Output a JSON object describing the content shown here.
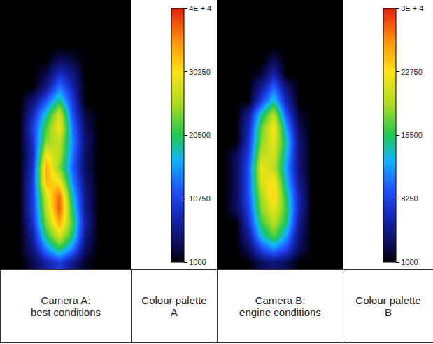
{
  "chart_data": [
    {
      "type": "heatmap",
      "caption": "Camera A: best conditions",
      "colorbar_caption": "Colour palette A",
      "tick_labels": false,
      "zlim": [
        1000,
        40000
      ],
      "zticks": [
        1000,
        10750,
        20500,
        30250,
        {
          "value": 40000,
          "label": "4E + 4"
        }
      ],
      "cells": [
        [
          1000,
          1000,
          1000,
          1000,
          1000,
          1000,
          1000,
          1000,
          1000,
          1000
        ],
        [
          1000,
          1000,
          1000,
          1000,
          1000,
          1000,
          1000,
          1000,
          1000,
          1000
        ],
        [
          1000,
          1000,
          1000,
          1000,
          1000,
          1000,
          1000,
          1000,
          1000,
          1000
        ],
        [
          1000,
          1000,
          1000,
          1000,
          1000,
          1000,
          1000,
          1000,
          1000,
          1000
        ],
        [
          1000,
          1000,
          1000,
          1000,
          4000,
          3000,
          1000,
          1000,
          1000,
          1000
        ],
        [
          1000,
          1000,
          1000,
          3000,
          9000,
          6000,
          1000,
          1000,
          1000,
          1000
        ],
        [
          1000,
          1000,
          1000,
          6000,
          14000,
          8000,
          1000,
          1000,
          1000,
          1000
        ],
        [
          1000,
          1000,
          5000,
          12000,
          20000,
          10000,
          1000,
          1000,
          1000,
          1000
        ],
        [
          1000,
          1000,
          8000,
          18000,
          28000,
          12000,
          3000,
          1000,
          1000,
          1000
        ],
        [
          1000,
          1000,
          10000,
          22000,
          30000,
          14000,
          4000,
          1000,
          1000,
          1000
        ],
        [
          1000,
          1000,
          9000,
          24000,
          27000,
          15000,
          5000,
          1000,
          1000,
          1000
        ],
        [
          1000,
          1000,
          8000,
          30000,
          26000,
          14000,
          4000,
          1000,
          1000,
          1000
        ],
        [
          1000,
          1000,
          9000,
          34000,
          24000,
          13000,
          4000,
          1000,
          1000,
          1000
        ],
        [
          1000,
          1000,
          10000,
          33000,
          30000,
          15000,
          5000,
          1000,
          1000,
          1000
        ],
        [
          1000,
          1000,
          10000,
          28000,
          37000,
          18000,
          6000,
          1000,
          1000,
          1000
        ],
        [
          1000,
          1000,
          10000,
          26000,
          38000,
          20000,
          6000,
          1000,
          1000,
          1000
        ],
        [
          1000,
          1000,
          9000,
          24000,
          34000,
          22000,
          7000,
          1000,
          1000,
          1000
        ],
        [
          1000,
          1000,
          7000,
          20000,
          28000,
          20000,
          6000,
          1000,
          1000,
          1000
        ],
        [
          1000,
          1000,
          5000,
          14000,
          20000,
          14000,
          4000,
          1000,
          1000,
          1000
        ],
        [
          1000,
          1000,
          3000,
          7000,
          10000,
          6000,
          2000,
          1000,
          1000,
          1000
        ]
      ]
    },
    {
      "type": "heatmap",
      "caption": "Camera B: engine conditions",
      "colorbar_caption": "Colour palette B",
      "tick_labels": false,
      "zlim": [
        1000,
        30000
      ],
      "zticks": [
        1000,
        8250,
        15500,
        22750,
        {
          "value": 30000,
          "label": "3E + 4"
        }
      ],
      "cells": [
        [
          1000,
          1000,
          1000,
          1000,
          1000,
          1000,
          1000,
          1000,
          1000,
          1000
        ],
        [
          1000,
          1000,
          1000,
          1000,
          1000,
          1000,
          1000,
          1000,
          1000,
          1000
        ],
        [
          1000,
          1000,
          1000,
          1000,
          1000,
          1000,
          1000,
          1000,
          1000,
          1000
        ],
        [
          1000,
          1000,
          1000,
          1000,
          1000,
          1000,
          1000,
          1000,
          1000,
          1000
        ],
        [
          1000,
          1000,
          1000,
          1000,
          3000,
          1000,
          1000,
          1000,
          1000,
          1000
        ],
        [
          1000,
          1000,
          1000,
          2000,
          6000,
          1000,
          1000,
          1000,
          1000,
          1000
        ],
        [
          1000,
          1000,
          1000,
          5000,
          10000,
          4000,
          1000,
          1000,
          1000,
          1000
        ],
        [
          1000,
          1000,
          1000,
          8000,
          14000,
          6000,
          1000,
          1000,
          1000,
          1000
        ],
        [
          1000,
          1000,
          5000,
          14000,
          20000,
          9000,
          2000,
          1000,
          1000,
          1000
        ],
        [
          1000,
          1000,
          6000,
          17000,
          23000,
          12000,
          3000,
          1000,
          1000,
          1000
        ],
        [
          1000,
          1000,
          7000,
          18000,
          22000,
          14000,
          4000,
          1000,
          1000,
          1000
        ],
        [
          1000,
          3000,
          8000,
          20000,
          21000,
          13000,
          4000,
          1000,
          1000,
          1000
        ],
        [
          1000,
          3000,
          9000,
          22000,
          20000,
          12000,
          4000,
          1000,
          1000,
          1000
        ],
        [
          1000,
          3000,
          9000,
          21000,
          23000,
          13000,
          5000,
          1000,
          1000,
          1000
        ],
        [
          1000,
          3000,
          9000,
          19000,
          24000,
          15000,
          6000,
          1000,
          1000,
          1000
        ],
        [
          1000,
          3000,
          8000,
          18000,
          22000,
          16000,
          6000,
          1000,
          1000,
          1000
        ],
        [
          1000,
          1000,
          7000,
          16000,
          20000,
          15000,
          5000,
          1000,
          1000,
          1000
        ],
        [
          1000,
          1000,
          5000,
          13000,
          17000,
          12000,
          4000,
          1000,
          1000,
          1000
        ],
        [
          1000,
          1000,
          3000,
          8000,
          11000,
          8000,
          3000,
          1000,
          1000,
          1000
        ],
        [
          1000,
          1000,
          1000,
          3000,
          4000,
          3000,
          1000,
          1000,
          1000,
          1000
        ]
      ]
    }
  ]
}
